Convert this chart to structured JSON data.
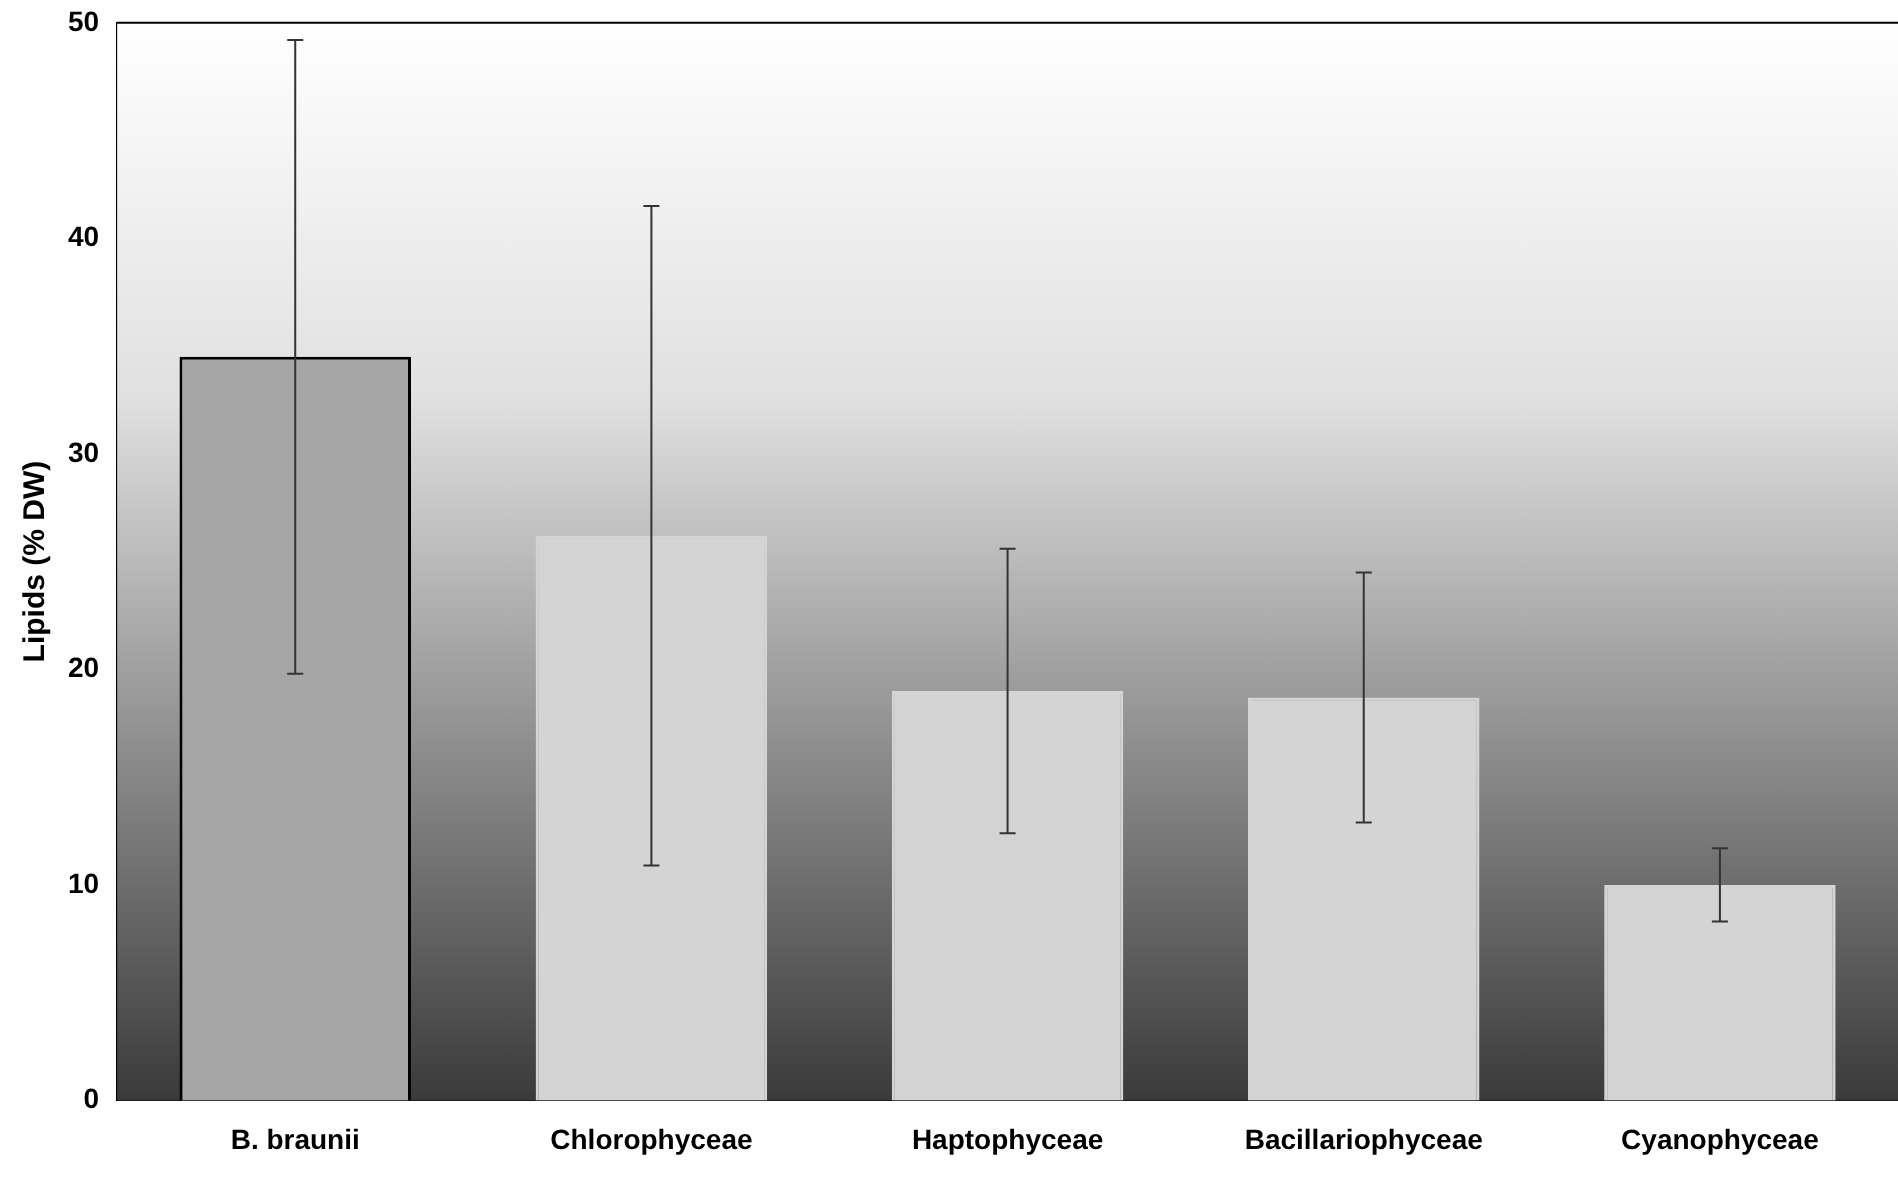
{
  "chart_data": {
    "type": "bar",
    "ylabel": "Lipids (% DW)",
    "categories": [
      "B. braunii",
      "Chlorophyceae",
      "Haptophyceae",
      "Bacillariophyceae",
      "Cyanophyceae"
    ],
    "values": [
      34.5,
      26.2,
      19.0,
      18.7,
      10.0
    ],
    "errors": [
      14.7,
      15.3,
      6.6,
      5.8,
      1.7
    ],
    "colors": [
      "#a6a6a6",
      "#d4d4d4",
      "#d4d4d4",
      "#d4d4d4",
      "#d4d4d4"
    ],
    "ylim": [
      0,
      50
    ],
    "yticks": [
      0,
      10,
      20,
      30,
      40,
      50
    ],
    "grid": false,
    "legend": false
  }
}
